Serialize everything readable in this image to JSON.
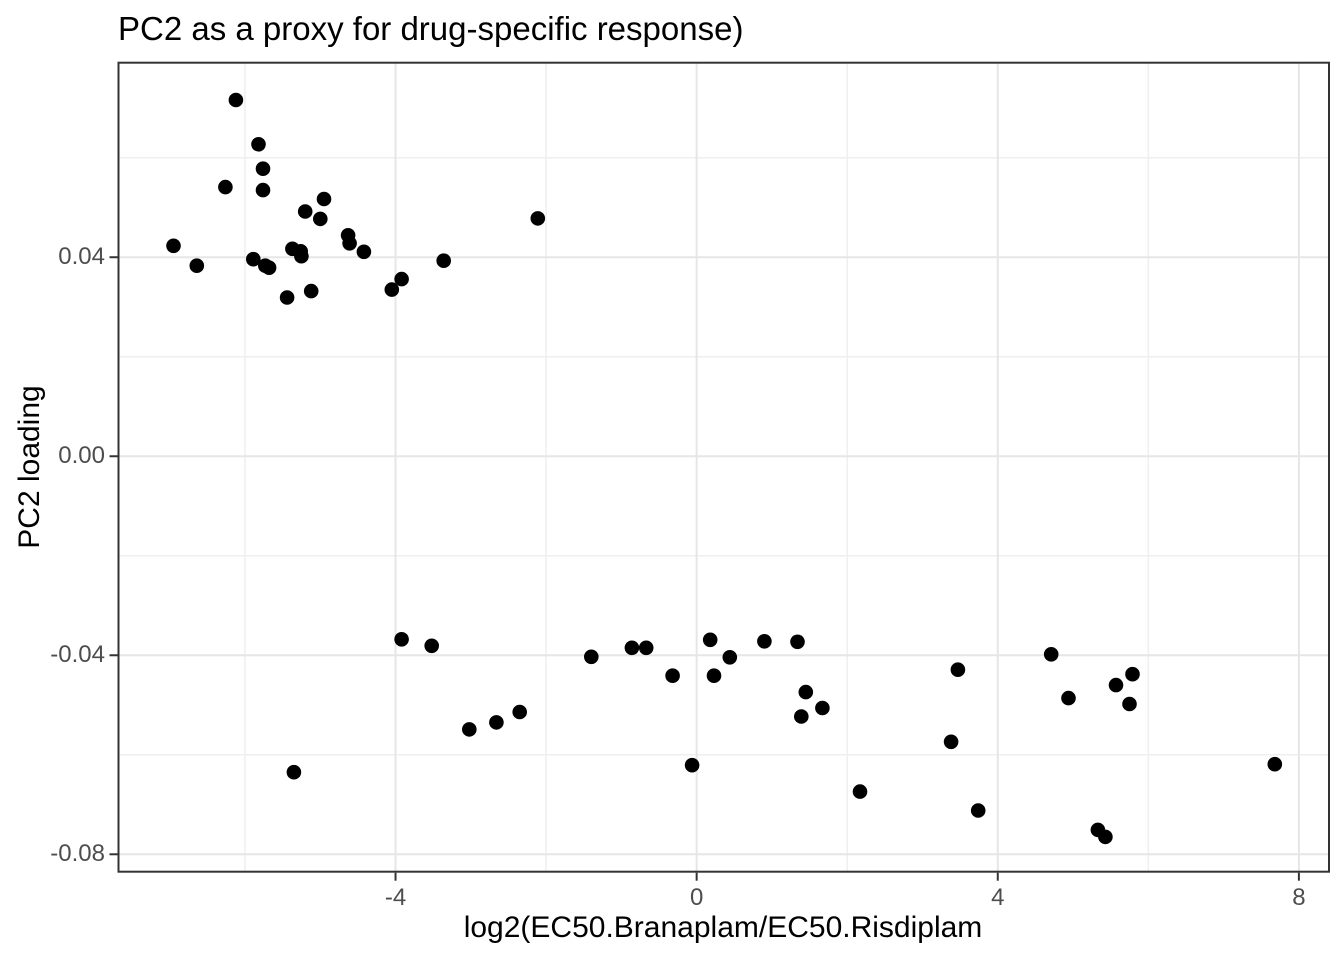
{
  "chart_data": {
    "type": "scatter",
    "title": "PC2 as a proxy for drug-specific response)",
    "xlabel": "log2(EC50.Branaplam/EC50.Risdiplam",
    "ylabel": "PC2 loading",
    "xlim": [
      -7.68,
      8.4
    ],
    "ylim": [
      -0.0835,
      0.0791
    ],
    "x_major_ticks": [
      -4,
      0,
      4,
      8
    ],
    "x_major_labels": [
      "-4",
      "0",
      "4",
      "8"
    ],
    "x_minor_ticks": [
      -6,
      -2,
      2,
      6
    ],
    "y_major_ticks": [
      0.04,
      0.0,
      -0.04,
      -0.08
    ],
    "y_major_labels": [
      "0.04",
      "0.00",
      "-0.04",
      "-0.08"
    ],
    "y_minor_ticks": [
      0.06,
      0.02,
      -0.02,
      -0.06
    ],
    "grid": true,
    "legend_position": "none",
    "colors": {
      "point": "#000000",
      "panel_border": "#333333",
      "major_grid": "#e6e6e6",
      "minor_grid": "#efefef",
      "tick_mark": "#333333",
      "tick_label": "#4d4d4d",
      "background": "#ffffff"
    },
    "point_radius": 7.3,
    "points": [
      [
        -6.12,
        0.0716
      ],
      [
        -5.82,
        0.0627
      ],
      [
        -5.76,
        0.0578
      ],
      [
        -6.26,
        0.0541
      ],
      [
        -5.76,
        0.0535
      ],
      [
        -4.95,
        0.0517
      ],
      [
        -5.2,
        0.0492
      ],
      [
        -5.0,
        0.0477
      ],
      [
        -2.11,
        0.0478
      ],
      [
        -4.63,
        0.0444
      ],
      [
        -4.61,
        0.0428
      ],
      [
        -6.95,
        0.0423
      ],
      [
        -5.37,
        0.0417
      ],
      [
        -5.26,
        0.0412
      ],
      [
        -5.25,
        0.0402
      ],
      [
        -4.42,
        0.0411
      ],
      [
        -5.89,
        0.0396
      ],
      [
        -3.36,
        0.0393
      ],
      [
        -5.73,
        0.0383
      ],
      [
        -5.68,
        0.0379
      ],
      [
        -6.64,
        0.0383
      ],
      [
        -3.92,
        0.0356
      ],
      [
        -5.12,
        0.0332
      ],
      [
        -5.44,
        0.0319
      ],
      [
        -4.05,
        0.0335
      ],
      [
        -5.35,
        -0.0635
      ],
      [
        -3.92,
        -0.0368
      ],
      [
        -3.52,
        -0.0381
      ],
      [
        -3.02,
        -0.0549
      ],
      [
        -2.66,
        -0.0535
      ],
      [
        -2.35,
        -0.0514
      ],
      [
        -1.4,
        -0.0403
      ],
      [
        -0.86,
        -0.0385
      ],
      [
        -0.67,
        -0.0385
      ],
      [
        -0.32,
        -0.0441
      ],
      [
        -0.06,
        -0.0621
      ],
      [
        0.18,
        -0.0369
      ],
      [
        0.23,
        -0.0441
      ],
      [
        0.44,
        -0.0404
      ],
      [
        0.9,
        -0.0372
      ],
      [
        1.34,
        -0.0373
      ],
      [
        1.39,
        -0.0523
      ],
      [
        1.45,
        -0.0474
      ],
      [
        1.67,
        -0.0506
      ],
      [
        2.17,
        -0.0674
      ],
      [
        3.47,
        -0.0429
      ],
      [
        3.38,
        -0.0574
      ],
      [
        3.74,
        -0.0712
      ],
      [
        4.71,
        -0.0398
      ],
      [
        4.94,
        -0.0486
      ],
      [
        5.57,
        -0.046
      ],
      [
        5.79,
        -0.0438
      ],
      [
        5.75,
        -0.0498
      ],
      [
        5.33,
        -0.0751
      ],
      [
        5.43,
        -0.0765
      ],
      [
        7.68,
        -0.0619
      ]
    ]
  }
}
